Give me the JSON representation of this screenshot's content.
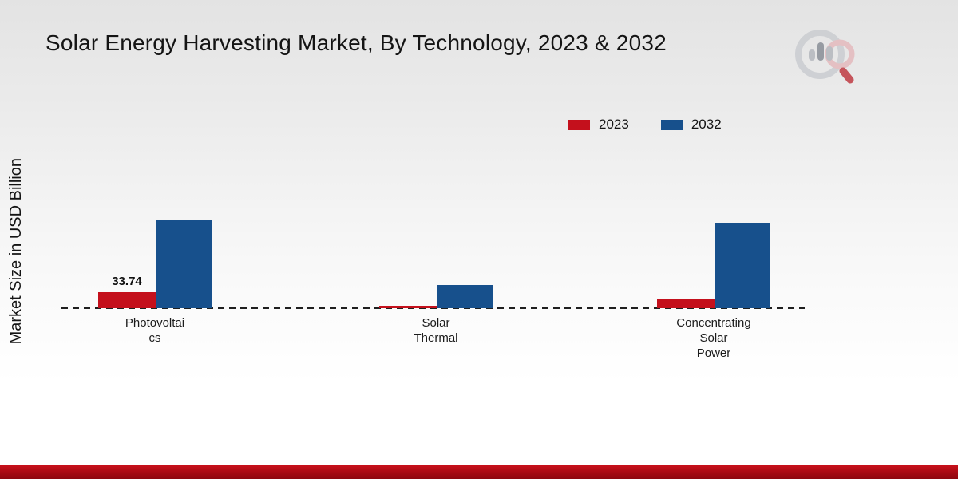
{
  "chart_data": {
    "type": "bar",
    "title": "Solar Energy Harvesting Market, By Technology, 2023 & 2032",
    "ylabel": "Market Size in USD Billion",
    "xlabel": "",
    "categories": [
      "Photovoltaics",
      "Solar Thermal",
      "Concentrating Solar Power"
    ],
    "category_label_lines": [
      [
        "Photovoltai",
        "cs"
      ],
      [
        "Solar",
        "Thermal"
      ],
      [
        "Concentrating",
        "Solar",
        "Power"
      ]
    ],
    "series": [
      {
        "name": "2023",
        "color": "#c4101c",
        "values": [
          33.74,
          5,
          18
        ]
      },
      {
        "name": "2032",
        "color": "#17508c",
        "values": [
          187,
          49,
          180
        ]
      }
    ],
    "annotations": [
      {
        "text": "33.74",
        "series": "2023",
        "category": "Photovoltaics"
      }
    ],
    "ylim": [
      0,
      200
    ],
    "grid": false,
    "legend_position": "top-right",
    "baseline_style": "dashed",
    "accent_colors": {
      "red": "#c4101c",
      "blue": "#17508c",
      "footer": "#a60a13"
    }
  }
}
